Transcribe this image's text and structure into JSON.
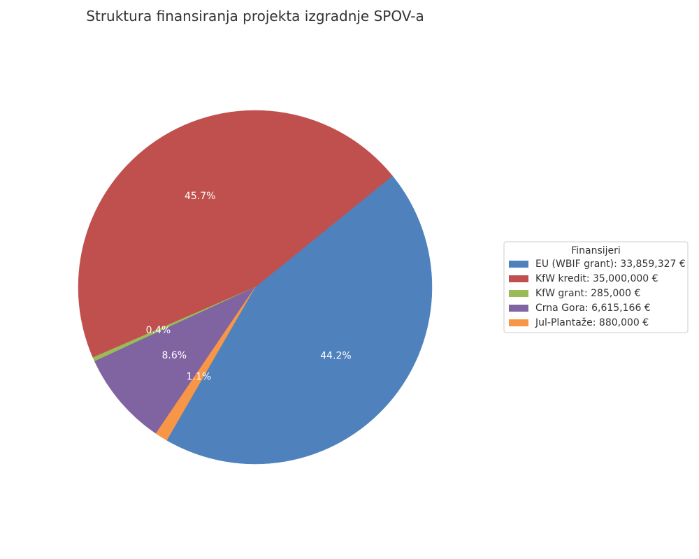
{
  "chart_data": {
    "type": "pie",
    "title": "Struktura finansiranja projekta izgradnje SPOV-a",
    "legend_title": "Finansijeri",
    "legend_position": "right",
    "start_angle_deg": 240,
    "direction": "counterclockwise",
    "slices": [
      {
        "label": "EU (WBIF grant): 33,859,327 €",
        "value": 33859327,
        "percent_label": "44.2%",
        "color": "#4f81bd"
      },
      {
        "label": "KfW kredit: 35,000,000 €",
        "value": 35000000,
        "percent_label": "45.7%",
        "color": "#c0504d"
      },
      {
        "label": "KfW grant: 285,000 €",
        "value": 285000,
        "percent_label": "0.4%",
        "color": "#9bbb59"
      },
      {
        "label": "Crna Gora: 6,615,166 €",
        "value": 6615166,
        "percent_label": "8.6%",
        "color": "#8064a2"
      },
      {
        "label": "Jul-Plantaže: 880,000 €",
        "value": 880000,
        "percent_label": "1.1%",
        "color": "#f79646"
      }
    ]
  }
}
